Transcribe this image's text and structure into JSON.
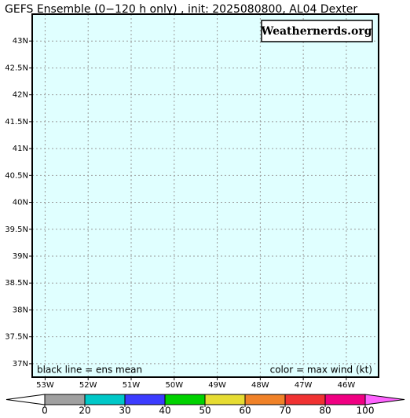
{
  "map": {
    "title": "GEFS Ensemble (0−120 h only) , init: 2025080800, AL04 Dexter",
    "watermark": "Weathernerds.org",
    "note_left": "black line = ens mean",
    "note_right": "color = max wind (kt)",
    "background": "#e0ffff",
    "grid": true,
    "xlim": [
      -53.3,
      -45.25
    ],
    "ylim": [
      36.75,
      43.5
    ],
    "xticks": [
      {
        "value": -53,
        "label": "53W"
      },
      {
        "value": -52,
        "label": "52W"
      },
      {
        "value": -51,
        "label": "51W"
      },
      {
        "value": -50,
        "label": "50W"
      },
      {
        "value": -49,
        "label": "49W"
      },
      {
        "value": -48,
        "label": "48W"
      },
      {
        "value": -47,
        "label": "47W"
      },
      {
        "value": -46,
        "label": "46W"
      }
    ],
    "yticks": [
      {
        "value": 43,
        "label": "43N"
      },
      {
        "value": 42.5,
        "label": "42.5N"
      },
      {
        "value": 42,
        "label": "42N"
      },
      {
        "value": 41.5,
        "label": "41.5N"
      },
      {
        "value": 41,
        "label": "41N"
      },
      {
        "value": 40.5,
        "label": "40.5N"
      },
      {
        "value": 40,
        "label": "40N"
      },
      {
        "value": 39.5,
        "label": "39.5N"
      },
      {
        "value": 39,
        "label": "39N"
      },
      {
        "value": 38.5,
        "label": "38.5N"
      },
      {
        "value": 38,
        "label": "38N"
      },
      {
        "value": 37.5,
        "label": "37.5N"
      },
      {
        "value": 37,
        "label": "37N"
      }
    ],
    "colorbar": {
      "bounds": [
        0,
        20,
        30,
        40,
        50,
        60,
        70,
        80,
        100
      ],
      "colors": [
        "#a0a0a0",
        "#00c8c8",
        "#3c3cff",
        "#00d200",
        "#e6dc32",
        "#f08228",
        "#f03232",
        "#f00082"
      ],
      "under_color": "#ffffff",
      "over_color": "#ff64ff"
    }
  }
}
